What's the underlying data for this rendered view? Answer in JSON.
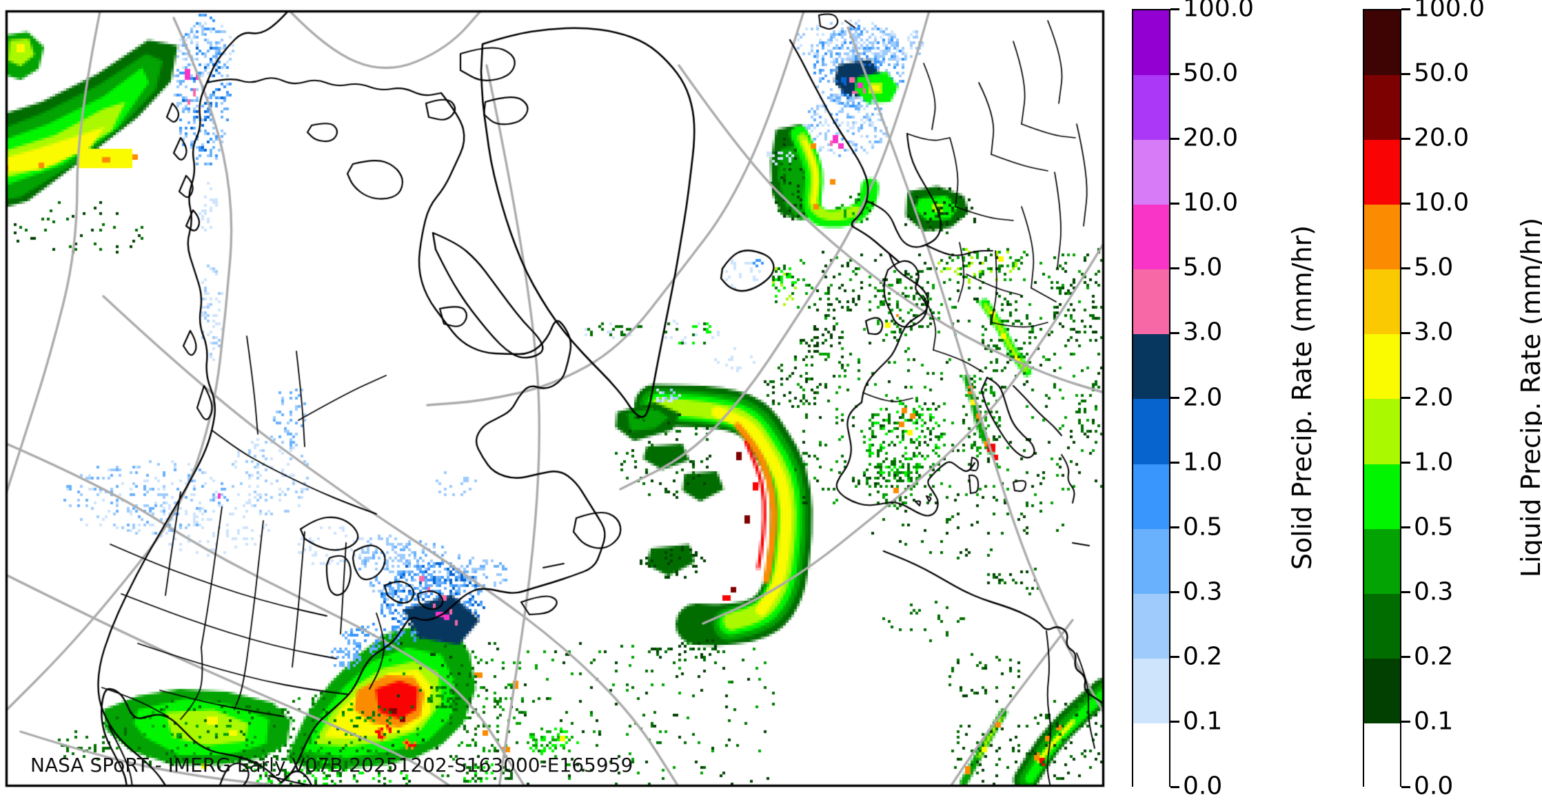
{
  "title_annotation": "NASA SPoRT - IMERG Early V07B 20251202-S163000-E165959",
  "map": {
    "background": "#FFFFFF",
    "graticule_color": "#ACACAC",
    "coast_color": "#000000",
    "frame_color": "#000000",
    "annotation_color": "#111111"
  },
  "legend_units": "mm/hr",
  "colorbars": [
    {
      "id": "solid",
      "title": "Solid Precip. Rate (mm/hr)",
      "ticks": [
        "100.0",
        "50.0",
        "20.0",
        "10.0",
        "5.0",
        "3.0",
        "2.0",
        "1.0",
        "0.5",
        "0.3",
        "0.2",
        "0.1",
        "0.0"
      ],
      "colors_top_to_bottom": [
        "#9201D1",
        "#AC38F7",
        "#D77BF7",
        "#F935C8",
        "#F768A6",
        "#07365F",
        "#0764CE",
        "#3996FC",
        "#69B1FC",
        "#9ECBFC",
        "#CEE4FD",
        "#FFFFFF"
      ]
    },
    {
      "id": "liquid",
      "title": "Liquid Precip. Rate (mm/hr)",
      "ticks": [
        "100.0",
        "50.0",
        "20.0",
        "10.0",
        "5.0",
        "3.0",
        "2.0",
        "1.0",
        "0.5",
        "0.3",
        "0.2",
        "0.1",
        "0.0"
      ],
      "colors_top_to_bottom": [
        "#3E0404",
        "#7E0101",
        "#F90304",
        "#FB8C02",
        "#FBC902",
        "#FAFA00",
        "#AAF900",
        "#01F501",
        "#02A302",
        "#016D01",
        "#014001",
        "#FFFFFF"
      ]
    }
  ]
}
